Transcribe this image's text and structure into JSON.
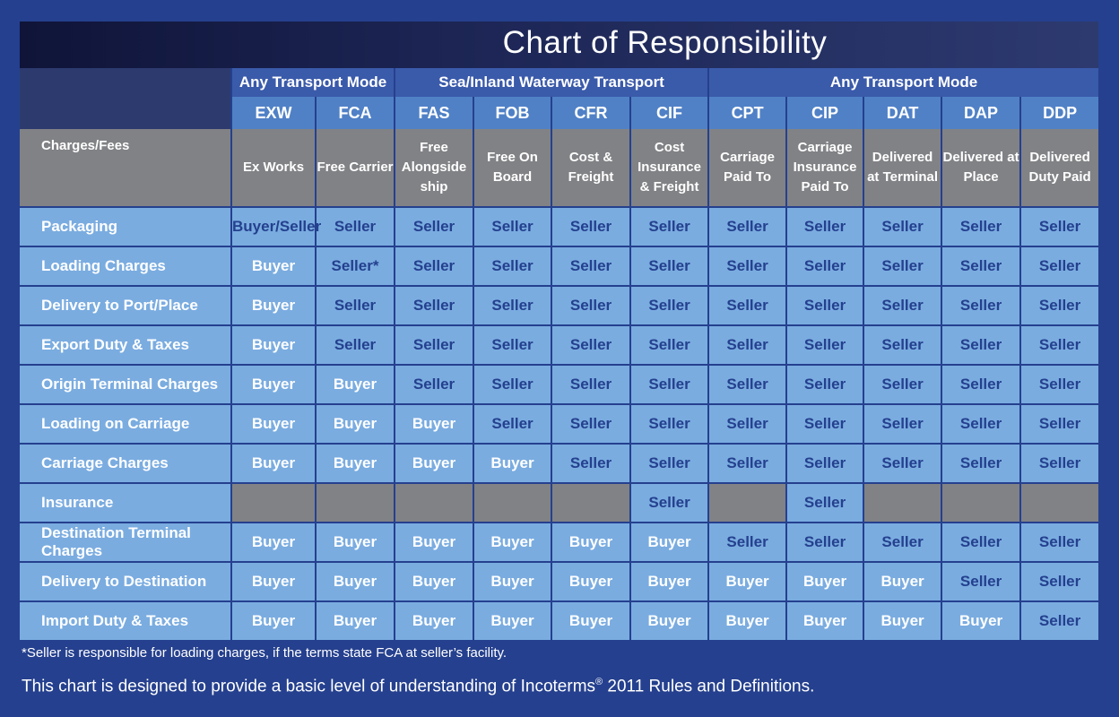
{
  "chart_data": {
    "type": "table",
    "title": "Chart of Responsibility",
    "row_header_label": "Charges/Fees",
    "groups": [
      {
        "label": "Any Transport Mode",
        "span": 2
      },
      {
        "label": "Sea/Inland Waterway Transport",
        "span": 4
      },
      {
        "label": "Any Transport Mode",
        "span": 5
      }
    ],
    "terms": [
      {
        "code": "EXW",
        "name": "Ex Works"
      },
      {
        "code": "FCA",
        "name": "Free Carrier"
      },
      {
        "code": "FAS",
        "name": "Free Alongside ship"
      },
      {
        "code": "FOB",
        "name": "Free On Board"
      },
      {
        "code": "CFR",
        "name": "Cost & Freight"
      },
      {
        "code": "CIF",
        "name": "Cost Insurance & Freight"
      },
      {
        "code": "CPT",
        "name": "Carriage Paid To"
      },
      {
        "code": "CIP",
        "name": "Carriage Insurance Paid To"
      },
      {
        "code": "DAT",
        "name": "Delivered at Terminal"
      },
      {
        "code": "DAP",
        "name": "Delivered at Place"
      },
      {
        "code": "DDP",
        "name": "Delivered Duty Paid"
      }
    ],
    "rows": [
      {
        "label": "Packaging",
        "values": [
          "Buyer/Seller",
          "Seller",
          "Seller",
          "Seller",
          "Seller",
          "Seller",
          "Seller",
          "Seller",
          "Seller",
          "Seller",
          "Seller"
        ]
      },
      {
        "label": "Loading Charges",
        "values": [
          "Buyer",
          "Seller*",
          "Seller",
          "Seller",
          "Seller",
          "Seller",
          "Seller",
          "Seller",
          "Seller",
          "Seller",
          "Seller"
        ]
      },
      {
        "label": "Delivery to Port/Place",
        "values": [
          "Buyer",
          "Seller",
          "Seller",
          "Seller",
          "Seller",
          "Seller",
          "Seller",
          "Seller",
          "Seller",
          "Seller",
          "Seller"
        ]
      },
      {
        "label": "Export Duty & Taxes",
        "values": [
          "Buyer",
          "Seller",
          "Seller",
          "Seller",
          "Seller",
          "Seller",
          "Seller",
          "Seller",
          "Seller",
          "Seller",
          "Seller"
        ]
      },
      {
        "label": "Origin Terminal Charges",
        "values": [
          "Buyer",
          "Buyer",
          "Seller",
          "Seller",
          "Seller",
          "Seller",
          "Seller",
          "Seller",
          "Seller",
          "Seller",
          "Seller"
        ]
      },
      {
        "label": "Loading on Carriage",
        "values": [
          "Buyer",
          "Buyer",
          "Buyer",
          "Seller",
          "Seller",
          "Seller",
          "Seller",
          "Seller",
          "Seller",
          "Seller",
          "Seller"
        ]
      },
      {
        "label": "Carriage Charges",
        "values": [
          "Buyer",
          "Buyer",
          "Buyer",
          "Buyer",
          "Seller",
          "Seller",
          "Seller",
          "Seller",
          "Seller",
          "Seller",
          "Seller"
        ]
      },
      {
        "label": "Insurance",
        "values": [
          "",
          "",
          "",
          "",
          "",
          "Seller",
          "",
          "Seller",
          "",
          "",
          ""
        ]
      },
      {
        "label": "Destination Terminal Charges",
        "values": [
          "Buyer",
          "Buyer",
          "Buyer",
          "Buyer",
          "Buyer",
          "Buyer",
          "Seller",
          "Seller",
          "Seller",
          "Seller",
          "Seller"
        ]
      },
      {
        "label": "Delivery to Destination",
        "values": [
          "Buyer",
          "Buyer",
          "Buyer",
          "Buyer",
          "Buyer",
          "Buyer",
          "Buyer",
          "Buyer",
          "Buyer",
          "Seller",
          "Seller"
        ]
      },
      {
        "label": "Import Duty & Taxes",
        "values": [
          "Buyer",
          "Buyer",
          "Buyer",
          "Buyer",
          "Buyer",
          "Buyer",
          "Buyer",
          "Buyer",
          "Buyer",
          "Buyer",
          "Seller"
        ]
      }
    ]
  },
  "footnote": "*Seller is responsible for loading charges, if the terms state FCA at seller’s facility.",
  "disclaimer": {
    "before": "This chart is designed to provide a basic level of understanding of Incoterms",
    "mark": "®",
    "after": " 2011 Rules and Definitions."
  },
  "colors": {
    "background": "#25408e",
    "group_header": "#3a5aaa",
    "code_header": "#5081c6",
    "description": "#818285",
    "cell": "#7aace0",
    "buyer_text": "#ffffff",
    "seller_text": "#24408e"
  }
}
